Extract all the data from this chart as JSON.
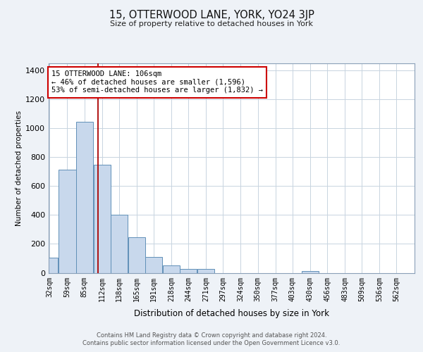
{
  "title": "15, OTTERWOOD LANE, YORK, YO24 3JP",
  "subtitle": "Size of property relative to detached houses in York",
  "xlabel": "Distribution of detached houses by size in York",
  "ylabel": "Number of detached properties",
  "bar_color": "#c8d8ec",
  "bar_edge_color": "#6090b8",
  "vline_color": "#aa0000",
  "vline_x": 106,
  "annotation_text": "15 OTTERWOOD LANE: 106sqm\n← 46% of detached houses are smaller (1,596)\n53% of semi-detached houses are larger (1,832) →",
  "annotation_box_color": "#ffffff",
  "annotation_box_edge": "#cc0000",
  "bins": [
    32,
    59,
    85,
    112,
    138,
    165,
    191,
    218,
    244,
    271,
    297,
    324,
    350,
    377,
    403,
    430,
    456,
    483,
    509,
    536,
    562
  ],
  "counts": [
    105,
    715,
    1045,
    750,
    400,
    245,
    110,
    50,
    28,
    25,
    0,
    0,
    0,
    0,
    0,
    10,
    0,
    0,
    0,
    0
  ],
  "ylim": [
    0,
    1450
  ],
  "yticks": [
    0,
    200,
    400,
    600,
    800,
    1000,
    1200,
    1400
  ],
  "footnote1": "Contains HM Land Registry data © Crown copyright and database right 2024.",
  "footnote2": "Contains public sector information licensed under the Open Government Licence v3.0.",
  "background_color": "#eef2f7",
  "plot_bg_color": "#ffffff",
  "grid_color": "#c8d4e0"
}
